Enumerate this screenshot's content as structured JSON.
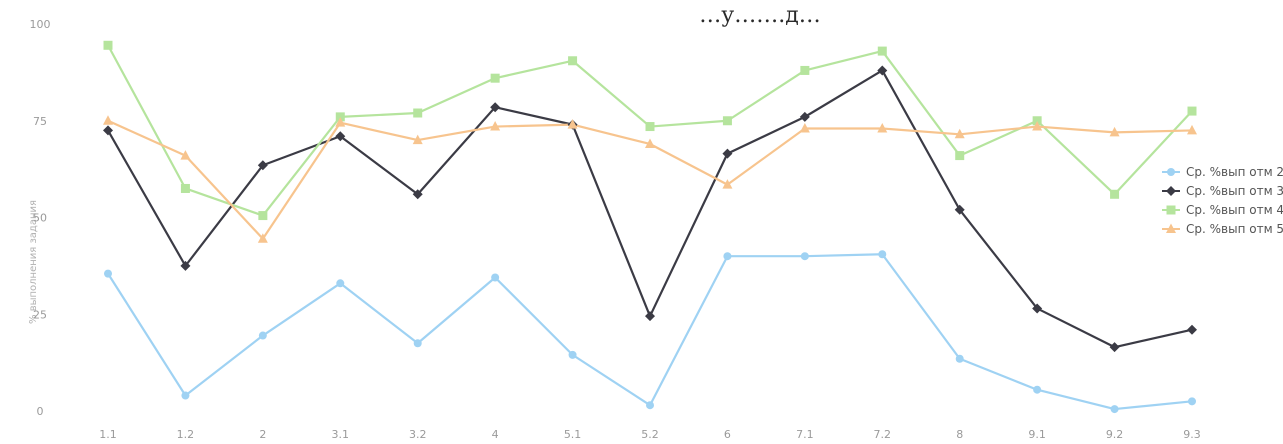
{
  "chart_data": {
    "type": "line",
    "title": "…у…….д…",
    "ylabel": "% выполнения задания",
    "xlabel": "",
    "ylim": [
      0,
      100
    ],
    "yticks": [
      0,
      25,
      50,
      75,
      100
    ],
    "grid": false,
    "legend_position": "right",
    "categories": [
      "1.1",
      "1.2",
      "2",
      "3.1",
      "3.2",
      "4",
      "5.1",
      "5.2",
      "6",
      "7.1",
      "7.2",
      "8",
      "9.1",
      "9.2",
      "9.3"
    ],
    "series": [
      {
        "name": "Ср. %вып отм 2",
        "color": "#9fd2f3",
        "marker": "circle",
        "values": [
          35.5,
          4,
          19.5,
          33,
          17.5,
          34.5,
          14.5,
          1.5,
          40,
          40,
          40.5,
          13.5,
          5.5,
          0.5,
          2.5
        ]
      },
      {
        "name": "Ср. %вып отм 3",
        "color": "#3b3b45",
        "marker": "diamond",
        "values": [
          72.5,
          37.5,
          63.5,
          71,
          56,
          78.5,
          74,
          24.5,
          66.5,
          76,
          88,
          52,
          26.5,
          16.5,
          21
        ]
      },
      {
        "name": "Ср. %вып отм 4",
        "color": "#b5e49d",
        "marker": "square",
        "values": [
          94.5,
          57.5,
          50.5,
          76,
          77,
          86,
          90.5,
          73.5,
          75,
          88,
          93,
          66,
          75,
          56,
          77.5
        ]
      },
      {
        "name": "Ср. %вып отм 5",
        "color": "#f7c48e",
        "marker": "triangle",
        "values": [
          75,
          66,
          44.5,
          74.5,
          70,
          73.5,
          74,
          69,
          58.5,
          73,
          73,
          71.5,
          73.5,
          72,
          72.5
        ]
      }
    ]
  }
}
